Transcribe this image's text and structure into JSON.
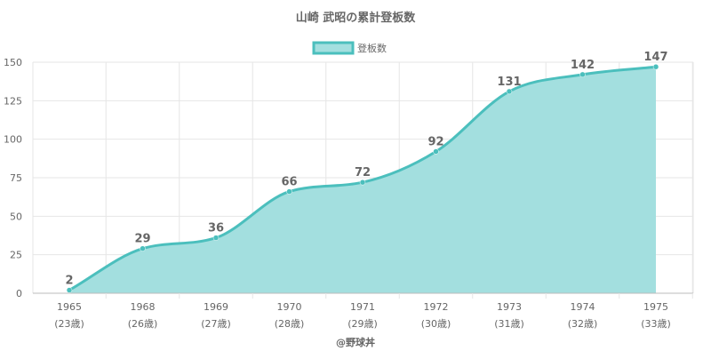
{
  "chart_data": {
    "type": "area",
    "title": "山崎 武昭の累計登板数",
    "legend": {
      "label": "登板数",
      "placement": "top-center"
    },
    "x": [
      "1965",
      "1968",
      "1969",
      "1970",
      "1971",
      "1972",
      "1973",
      "1974",
      "1975"
    ],
    "x_sublabels": [
      "(23歳)",
      "(26歳)",
      "(27歳)",
      "(28歳)",
      "(29歳)",
      "(30歳)",
      "(31歳)",
      "(32歳)",
      "(33歳)"
    ],
    "series": [
      {
        "name": "登板数",
        "values": [
          2,
          29,
          36,
          66,
          72,
          92,
          131,
          142,
          147
        ]
      }
    ],
    "ylim": [
      0,
      150
    ],
    "yticks": [
      0,
      25,
      50,
      75,
      100,
      125,
      150
    ],
    "grid": true,
    "colors": {
      "line": "#4bbfbd",
      "fill": "#a3dfdf",
      "grid": "#e6e6e6",
      "axis": "#bbbbbb",
      "text": "#666666",
      "title": "#666666"
    }
  },
  "footer": {
    "credit": "@野球丼"
  }
}
